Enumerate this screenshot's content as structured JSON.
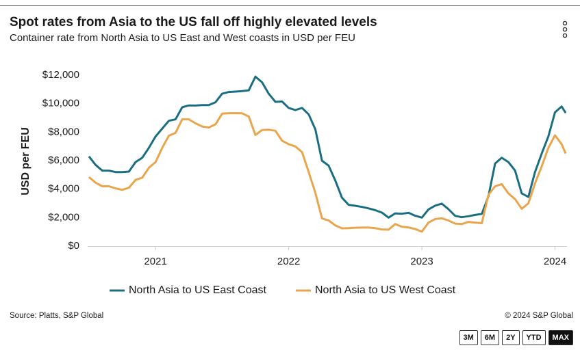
{
  "chart_data": {
    "type": "line",
    "title": "Spot rates from Asia to the US fall off highly elevated levels",
    "subtitle": "Container rate from North Asia to US East and West coasts in USD per FEU",
    "y_label": "USD per FEU",
    "source": "Source: Platts, S&P Global",
    "copyright": "© 2024 S&P Global",
    "range_buttons": [
      "3M",
      "6M",
      "2Y",
      "YTD",
      "MAX"
    ],
    "active_range": "MAX",
    "grid": false,
    "legend": "bottom",
    "xlim": [
      2020.49,
      2024.09
    ],
    "xticks": [
      2021,
      2022,
      2023,
      2024
    ],
    "ylim": [
      0,
      12000
    ],
    "yticks": [
      {
        "value": 0,
        "label": "$0"
      },
      {
        "value": 2000,
        "label": "$2,000"
      },
      {
        "value": 4000,
        "label": "$4,000"
      },
      {
        "value": 6000,
        "label": "$6,000"
      },
      {
        "value": 8000,
        "label": "$8,000"
      },
      {
        "value": 10000,
        "label": "$10,000"
      },
      {
        "value": 12000,
        "label": "$12,000"
      }
    ],
    "x": [
      2020.5,
      2020.55,
      2020.6,
      2020.65,
      2020.7,
      2020.75,
      2020.8,
      2020.85,
      2020.9,
      2020.95,
      2021.0,
      2021.05,
      2021.1,
      2021.15,
      2021.2,
      2021.25,
      2021.3,
      2021.35,
      2021.4,
      2021.45,
      2021.5,
      2021.55,
      2021.6,
      2021.65,
      2021.7,
      2021.75,
      2021.8,
      2021.85,
      2021.9,
      2021.95,
      2022.0,
      2022.05,
      2022.1,
      2022.15,
      2022.2,
      2022.25,
      2022.3,
      2022.35,
      2022.4,
      2022.45,
      2022.5,
      2022.55,
      2022.6,
      2022.65,
      2022.7,
      2022.75,
      2022.8,
      2022.85,
      2022.9,
      2022.95,
      2023.0,
      2023.05,
      2023.1,
      2023.15,
      2023.2,
      2023.25,
      2023.3,
      2023.35,
      2023.4,
      2023.45,
      2023.5,
      2023.55,
      2023.6,
      2023.65,
      2023.7,
      2023.75,
      2023.8,
      2023.85,
      2023.9,
      2023.95,
      2024.0,
      2024.05,
      2024.08
    ],
    "series": [
      {
        "name": "North Asia to US East Coast",
        "color": "#1a6e82",
        "values": [
          6300,
          5700,
          5300,
          5300,
          5200,
          5200,
          5230,
          5900,
          6200,
          6900,
          7700,
          8250,
          8800,
          8900,
          9750,
          9880,
          9870,
          9900,
          9900,
          10100,
          10700,
          10820,
          10850,
          10880,
          10940,
          11900,
          11500,
          10700,
          10130,
          10150,
          9700,
          9550,
          9700,
          9250,
          8200,
          6000,
          5650,
          4600,
          3400,
          2900,
          2830,
          2750,
          2650,
          2520,
          2350,
          2000,
          2300,
          2270,
          2340,
          2130,
          2000,
          2580,
          2840,
          2980,
          2590,
          2120,
          2030,
          2100,
          2190,
          2260,
          3500,
          5800,
          6200,
          5900,
          5300,
          3700,
          3450,
          5200,
          6500,
          7700,
          9400,
          9800,
          9350
        ]
      },
      {
        "name": "North Asia to US West Coast",
        "color": "#e8a54b",
        "values": [
          4850,
          4450,
          4200,
          4200,
          4050,
          3950,
          4100,
          4650,
          4800,
          5500,
          5900,
          6900,
          7750,
          7950,
          8900,
          8900,
          8620,
          8400,
          8330,
          8550,
          9300,
          9330,
          9330,
          9320,
          9100,
          7800,
          8150,
          8170,
          8100,
          7400,
          7150,
          7000,
          6600,
          5200,
          3750,
          1950,
          1800,
          1450,
          1250,
          1260,
          1290,
          1300,
          1300,
          1260,
          1170,
          1150,
          1550,
          1360,
          1310,
          1200,
          1020,
          1650,
          1900,
          1950,
          1800,
          1580,
          1550,
          1700,
          1650,
          1610,
          3600,
          4200,
          4350,
          3700,
          3300,
          2620,
          3000,
          4400,
          5600,
          6900,
          7780,
          7150,
          6500
        ]
      }
    ]
  }
}
